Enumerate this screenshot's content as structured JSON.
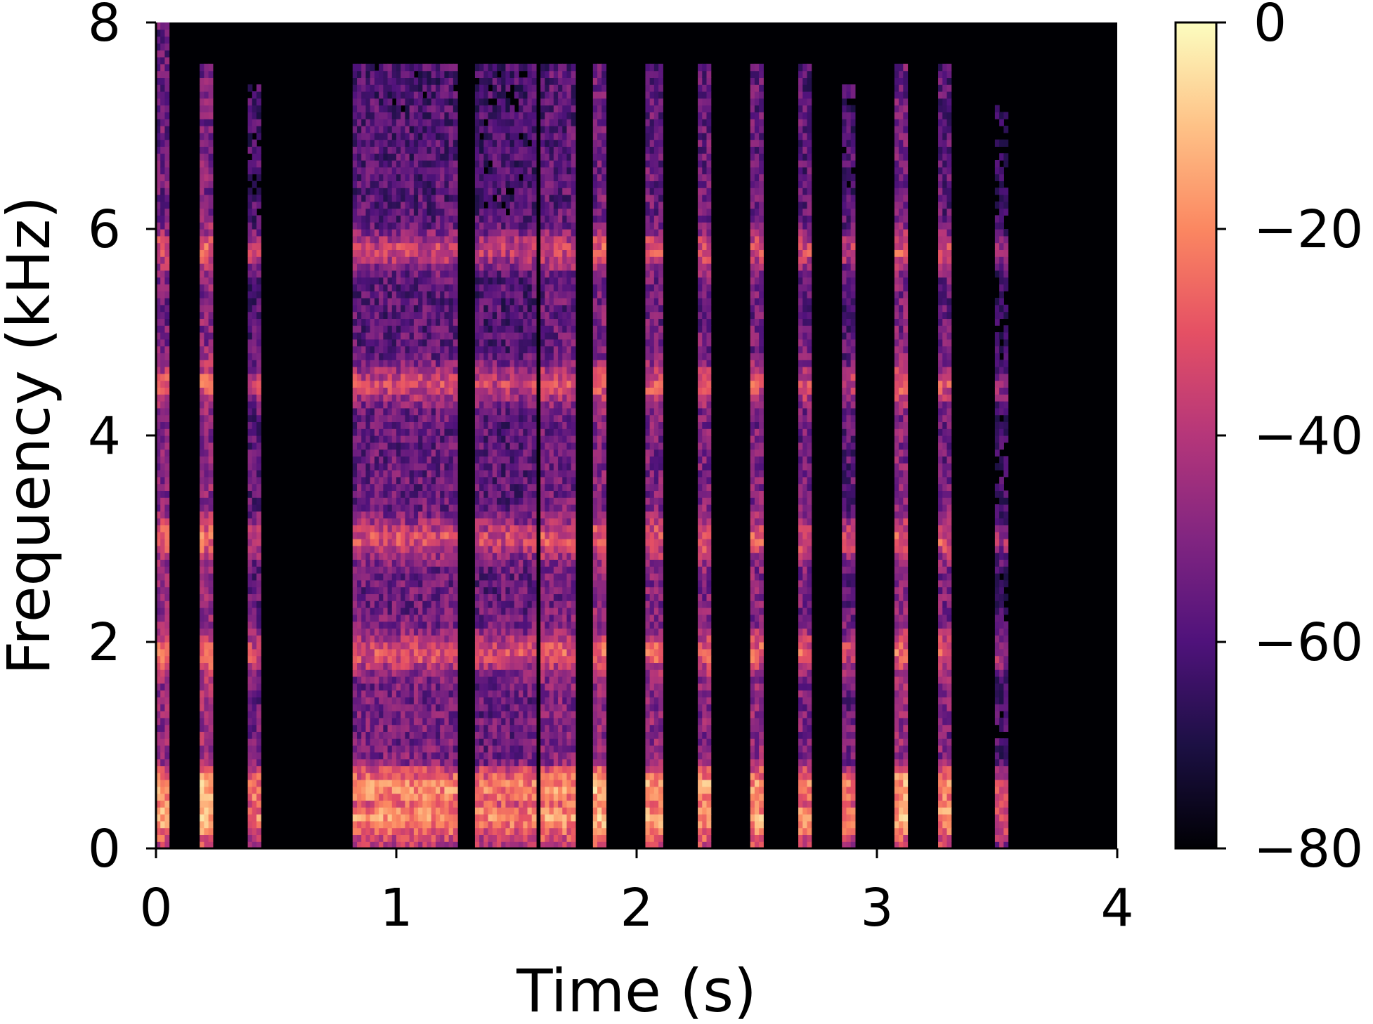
{
  "chart_data": {
    "type": "heatmap",
    "title": "",
    "xlabel": "Time (s)",
    "ylabel": "Frequency (kHz)",
    "xlim": [
      0,
      4
    ],
    "ylim": [
      0,
      8
    ],
    "x_ticks": [
      0,
      1,
      2,
      3,
      4
    ],
    "x_tick_labels": [
      "0",
      "1",
      "2",
      "3",
      "4"
    ],
    "y_ticks": [
      0,
      2,
      4,
      6,
      8
    ],
    "y_tick_labels": [
      "0",
      "2",
      "4",
      "6",
      "8"
    ],
    "colormap": "magma",
    "colorbar": {
      "range": [
        -80,
        0
      ],
      "ticks": [
        0,
        -20,
        -40,
        -60,
        -80
      ],
      "tick_labels": [
        "0",
        "−20",
        "−40",
        "−60",
        "−80"
      ]
    },
    "background_color": "#000004",
    "events": [
      {
        "t0": 0.0,
        "t1": 0.05,
        "level": -45,
        "fmax": 8.0
      },
      {
        "t0": 0.19,
        "t1": 0.24,
        "level": -42,
        "fmax": 7.6
      },
      {
        "t0": 0.39,
        "t1": 0.43,
        "level": -52,
        "fmax": 7.4
      },
      {
        "t0": 0.82,
        "t1": 1.25,
        "level": -50,
        "fmax": 7.6
      },
      {
        "t0": 1.33,
        "t1": 1.58,
        "level": -52,
        "fmax": 7.6
      },
      {
        "t0": 1.6,
        "t1": 1.74,
        "level": -48,
        "fmax": 7.6
      },
      {
        "t0": 1.82,
        "t1": 1.88,
        "level": -44,
        "fmax": 7.6
      },
      {
        "t0": 2.04,
        "t1": 2.1,
        "level": -46,
        "fmax": 7.6
      },
      {
        "t0": 2.26,
        "t1": 2.31,
        "level": -46,
        "fmax": 7.6
      },
      {
        "t0": 2.47,
        "t1": 2.52,
        "level": -46,
        "fmax": 7.6
      },
      {
        "t0": 2.67,
        "t1": 2.73,
        "level": -48,
        "fmax": 7.6
      },
      {
        "t0": 2.86,
        "t1": 2.9,
        "level": -52,
        "fmax": 7.4
      },
      {
        "t0": 3.07,
        "t1": 3.13,
        "level": -44,
        "fmax": 7.6
      },
      {
        "t0": 3.26,
        "t1": 3.3,
        "level": -48,
        "fmax": 7.6
      },
      {
        "t0": 3.5,
        "t1": 3.54,
        "level": -60,
        "fmax": 7.2
      }
    ],
    "harmonic_bands_khz": [
      0.3,
      0.58,
      1.9,
      3.0,
      4.5,
      5.8
    ]
  }
}
